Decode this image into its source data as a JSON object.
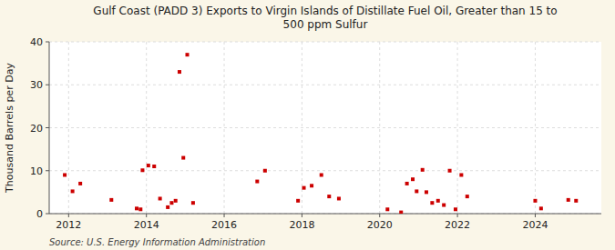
{
  "chart_data": {
    "type": "scatter",
    "title": "Gulf Coast (PADD 3) Exports to Virgin Islands of Distillate Fuel Oil, Greater than 15 to\n500 ppm Sulfur",
    "y_label": "Thousand Barrels per Day",
    "annotations": [
      "Source: U.S. Energy Information Administration"
    ],
    "color": "#cc0000",
    "marker": "square",
    "grid": true,
    "xlim": [
      2011.5,
      2025.7
    ],
    "xticks": [
      2012,
      2014,
      2016,
      2018,
      2020,
      2022,
      2024
    ],
    "ylim": [
      0,
      40
    ],
    "yticks": [
      0,
      10,
      20,
      30,
      40
    ],
    "x": [
      2011.9,
      2012.1,
      2012.3,
      2013.1,
      2013.9,
      2014.05,
      2014.2,
      2013.75,
      2013.85,
      2014.35,
      2014.55,
      2014.65,
      2014.75,
      2014.85,
      2014.95,
      2015.05,
      2015.2,
      2016.85,
      2017.05,
      2017.9,
      2018.05,
      2018.25,
      2018.5,
      2018.7,
      2018.95,
      2020.2,
      2020.55,
      2020.7,
      2020.85,
      2020.95,
      2021.1,
      2021.2,
      2021.35,
      2021.5,
      2021.65,
      2021.8,
      2021.95,
      2022.1,
      2022.25,
      2024.0,
      2024.15,
      2024.85,
      2025.05
    ],
    "values": [
      9.0,
      5.2,
      7.0,
      3.2,
      10.1,
      11.2,
      11.0,
      1.2,
      1.0,
      3.5,
      1.5,
      2.5,
      3.0,
      33.0,
      13.0,
      37.0,
      2.5,
      7.5,
      10.0,
      3.0,
      6.0,
      6.5,
      9.0,
      4.0,
      3.5,
      1.0,
      0.3,
      7.0,
      8.0,
      5.2,
      10.2,
      5.0,
      2.5,
      3.0,
      2.0,
      10.0,
      1.0,
      9.0,
      4.0,
      3.0,
      1.2,
      3.2,
      3.0
    ]
  }
}
